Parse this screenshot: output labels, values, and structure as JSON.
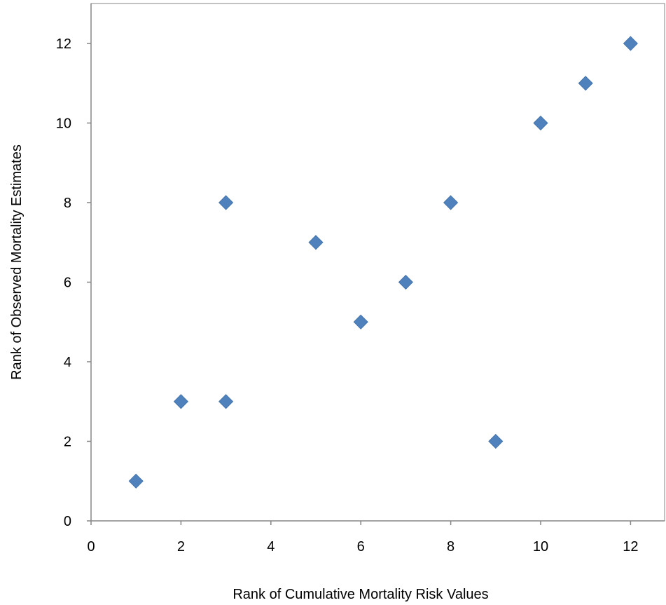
{
  "chart_data": {
    "type": "scatter",
    "title": "",
    "xlabel": "Rank of Cumulative Mortality Risk Values",
    "ylabel": "Rank of Observed Mortality Estimates",
    "xlim": [
      0,
      13
    ],
    "ylim": [
      0,
      13
    ],
    "xticks": [
      0,
      2,
      4,
      6,
      8,
      10,
      12
    ],
    "yticks": [
      0,
      2,
      4,
      6,
      8,
      10,
      12
    ],
    "grid": false,
    "legend": "none",
    "marker": "diamond",
    "colors": {
      "marker": "#4F81BD",
      "axis": "#868686",
      "plot_border": "#868686",
      "text": "#000000"
    },
    "series": [
      {
        "points": [
          {
            "x": 1,
            "y": 1
          },
          {
            "x": 2,
            "y": 3
          },
          {
            "x": 3,
            "y": 3
          },
          {
            "x": 3,
            "y": 8
          },
          {
            "x": 5,
            "y": 7
          },
          {
            "x": 6,
            "y": 5
          },
          {
            "x": 7,
            "y": 6
          },
          {
            "x": 8,
            "y": 8
          },
          {
            "x": 9,
            "y": 2
          },
          {
            "x": 10,
            "y": 10
          },
          {
            "x": 11,
            "y": 11
          },
          {
            "x": 12,
            "y": 12
          }
        ]
      }
    ]
  }
}
